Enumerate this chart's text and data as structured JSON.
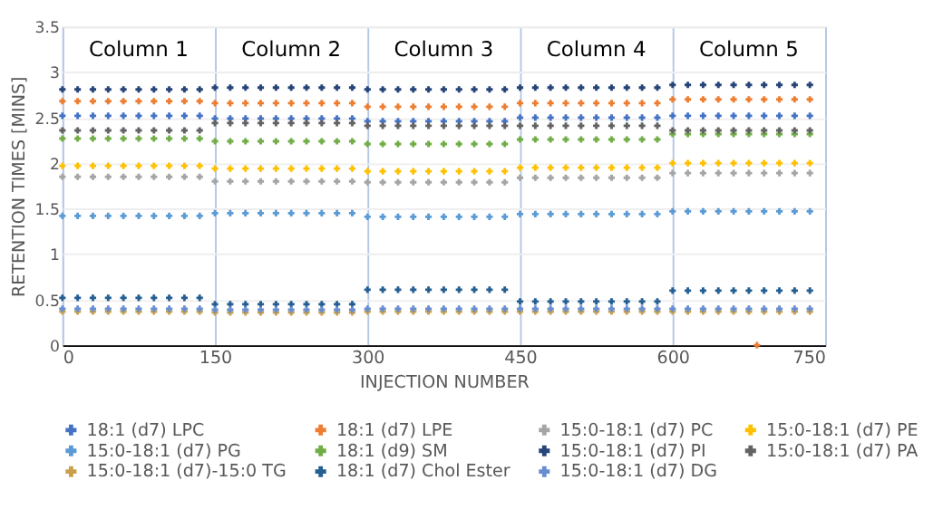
{
  "chart_data": {
    "type": "scatter",
    "xlabel": "INJECTION NUMBER",
    "ylabel": "RETENTION TIMES [MINS]",
    "xlim": [
      0,
      750
    ],
    "xticks": [
      0,
      150,
      300,
      450,
      600,
      750
    ],
    "ylim": [
      0,
      3.5
    ],
    "yticks": [
      0,
      0.5,
      1,
      1.5,
      2,
      2.5,
      3,
      3.5
    ],
    "grid": true,
    "legend": "bottom",
    "marker": "cross",
    "annotations": [
      "Column 1",
      "Column 2",
      "Column 3",
      "Column 4",
      "Column 5"
    ],
    "x": [
      0,
      15,
      30,
      45,
      60,
      75,
      90,
      105,
      120,
      135,
      150,
      165,
      180,
      195,
      210,
      225,
      240,
      255,
      270,
      285,
      300,
      315,
      330,
      345,
      360,
      375,
      390,
      405,
      420,
      435,
      450,
      465,
      480,
      495,
      510,
      525,
      540,
      555,
      570,
      585,
      600,
      615,
      630,
      645,
      660,
      675,
      690,
      705,
      720,
      735
    ],
    "series": [
      {
        "name": "18:1 (d7) LPC",
        "color": "#4472c4",
        "values": [
          2.52,
          2.52,
          2.52,
          2.52,
          2.52,
          2.52,
          2.52,
          2.52,
          2.52,
          2.52,
          2.49,
          2.49,
          2.49,
          2.49,
          2.49,
          2.49,
          2.49,
          2.49,
          2.49,
          2.49,
          2.46,
          2.46,
          2.46,
          2.46,
          2.46,
          2.46,
          2.46,
          2.46,
          2.46,
          2.46,
          2.5,
          2.5,
          2.5,
          2.5,
          2.5,
          2.5,
          2.5,
          2.5,
          2.5,
          2.5,
          2.52,
          2.52,
          2.52,
          2.52,
          2.52,
          2.52,
          2.52,
          2.52,
          2.52,
          2.52
        ]
      },
      {
        "name": "18:1 (d7) LPE",
        "color": "#ed7d31",
        "x": [
          0,
          15,
          30,
          45,
          60,
          75,
          90,
          105,
          120,
          135,
          150,
          165,
          180,
          195,
          210,
          225,
          240,
          255,
          270,
          285,
          300,
          315,
          330,
          345,
          360,
          375,
          390,
          405,
          420,
          435,
          450,
          465,
          480,
          495,
          510,
          525,
          540,
          555,
          570,
          585,
          600,
          615,
          630,
          645,
          660,
          675,
          683,
          690,
          705,
          720,
          735
        ],
        "values": [
          2.68,
          2.68,
          2.68,
          2.68,
          2.68,
          2.68,
          2.68,
          2.68,
          2.68,
          2.68,
          2.66,
          2.66,
          2.66,
          2.66,
          2.66,
          2.66,
          2.66,
          2.66,
          2.66,
          2.66,
          2.62,
          2.62,
          2.62,
          2.62,
          2.62,
          2.62,
          2.62,
          2.62,
          2.62,
          2.62,
          2.66,
          2.66,
          2.66,
          2.66,
          2.66,
          2.66,
          2.66,
          2.66,
          2.66,
          2.66,
          2.7,
          2.7,
          2.7,
          2.7,
          2.7,
          2.7,
          0,
          2.7,
          2.7,
          2.7,
          2.7
        ]
      },
      {
        "name": "15:0-18:1 (d7) PC",
        "color": "#a5a5a5",
        "values": [
          1.85,
          1.85,
          1.85,
          1.85,
          1.85,
          1.85,
          1.85,
          1.85,
          1.85,
          1.85,
          1.8,
          1.8,
          1.8,
          1.8,
          1.8,
          1.8,
          1.8,
          1.8,
          1.8,
          1.8,
          1.79,
          1.79,
          1.79,
          1.79,
          1.79,
          1.79,
          1.79,
          1.79,
          1.79,
          1.79,
          1.84,
          1.84,
          1.84,
          1.84,
          1.84,
          1.84,
          1.84,
          1.84,
          1.84,
          1.84,
          1.89,
          1.89,
          1.89,
          1.89,
          1.89,
          1.89,
          1.89,
          1.89,
          1.89,
          1.89
        ]
      },
      {
        "name": "15:0-18:1 (d7) PE",
        "color": "#ffc000",
        "values": [
          1.97,
          1.97,
          1.97,
          1.97,
          1.97,
          1.97,
          1.97,
          1.97,
          1.97,
          1.97,
          1.94,
          1.94,
          1.94,
          1.94,
          1.94,
          1.94,
          1.94,
          1.94,
          1.94,
          1.94,
          1.91,
          1.91,
          1.91,
          1.91,
          1.91,
          1.91,
          1.91,
          1.91,
          1.91,
          1.91,
          1.95,
          1.95,
          1.95,
          1.95,
          1.95,
          1.95,
          1.95,
          1.95,
          1.95,
          1.95,
          2.0,
          2.0,
          2.0,
          2.0,
          2.0,
          2.0,
          2.0,
          2.0,
          2.0,
          2.0
        ]
      },
      {
        "name": "15:0-18:1 (d7) PG",
        "color": "#5b9bd5",
        "values": [
          1.42,
          1.42,
          1.42,
          1.42,
          1.42,
          1.42,
          1.42,
          1.42,
          1.42,
          1.42,
          1.45,
          1.45,
          1.45,
          1.45,
          1.45,
          1.45,
          1.45,
          1.45,
          1.45,
          1.45,
          1.41,
          1.41,
          1.41,
          1.41,
          1.41,
          1.41,
          1.41,
          1.41,
          1.41,
          1.41,
          1.44,
          1.44,
          1.44,
          1.44,
          1.44,
          1.44,
          1.44,
          1.44,
          1.44,
          1.44,
          1.47,
          1.47,
          1.47,
          1.47,
          1.47,
          1.47,
          1.47,
          1.47,
          1.47,
          1.47
        ]
      },
      {
        "name": "18:1 (d9) SM",
        "color": "#70ad47",
        "values": [
          2.27,
          2.27,
          2.27,
          2.27,
          2.27,
          2.27,
          2.27,
          2.27,
          2.27,
          2.27,
          2.24,
          2.24,
          2.24,
          2.24,
          2.24,
          2.24,
          2.24,
          2.24,
          2.24,
          2.24,
          2.21,
          2.21,
          2.21,
          2.21,
          2.21,
          2.21,
          2.21,
          2.21,
          2.21,
          2.21,
          2.26,
          2.26,
          2.26,
          2.26,
          2.26,
          2.26,
          2.26,
          2.26,
          2.26,
          2.26,
          2.32,
          2.32,
          2.32,
          2.32,
          2.32,
          2.32,
          2.32,
          2.32,
          2.32,
          2.32
        ]
      },
      {
        "name": "15:0-18:1 (d7) PI",
        "color": "#264478",
        "values": [
          2.81,
          2.81,
          2.81,
          2.81,
          2.81,
          2.81,
          2.81,
          2.81,
          2.81,
          2.81,
          2.83,
          2.83,
          2.83,
          2.83,
          2.83,
          2.83,
          2.83,
          2.83,
          2.83,
          2.83,
          2.81,
          2.81,
          2.81,
          2.81,
          2.81,
          2.81,
          2.81,
          2.81,
          2.81,
          2.81,
          2.83,
          2.83,
          2.83,
          2.83,
          2.83,
          2.83,
          2.83,
          2.83,
          2.83,
          2.83,
          2.86,
          2.86,
          2.86,
          2.86,
          2.86,
          2.86,
          2.86,
          2.86,
          2.86,
          2.86
        ]
      },
      {
        "name": "15:0-18:1 (d7) PA",
        "color": "#636363",
        "values": [
          2.36,
          2.36,
          2.36,
          2.36,
          2.36,
          2.36,
          2.36,
          2.36,
          2.36,
          2.36,
          2.44,
          2.44,
          2.44,
          2.44,
          2.44,
          2.44,
          2.44,
          2.44,
          2.44,
          2.44,
          2.41,
          2.41,
          2.41,
          2.41,
          2.41,
          2.41,
          2.41,
          2.41,
          2.41,
          2.41,
          2.41,
          2.41,
          2.41,
          2.41,
          2.41,
          2.41,
          2.41,
          2.41,
          2.41,
          2.41,
          2.36,
          2.36,
          2.36,
          2.36,
          2.36,
          2.36,
          2.36,
          2.36,
          2.36,
          2.36
        ]
      },
      {
        "name": "15:0-18:1 (d7)-15:0 TG",
        "color": "#c9a04a",
        "values": [
          0.37,
          0.37,
          0.37,
          0.37,
          0.37,
          0.37,
          0.37,
          0.37,
          0.37,
          0.37,
          0.36,
          0.36,
          0.36,
          0.36,
          0.36,
          0.36,
          0.36,
          0.36,
          0.36,
          0.36,
          0.37,
          0.37,
          0.37,
          0.37,
          0.37,
          0.37,
          0.37,
          0.37,
          0.37,
          0.37,
          0.37,
          0.37,
          0.37,
          0.37,
          0.37,
          0.37,
          0.37,
          0.37,
          0.37,
          0.37,
          0.37,
          0.37,
          0.37,
          0.37,
          0.37,
          0.37,
          0.37,
          0.37,
          0.37,
          0.37
        ]
      },
      {
        "name": "18:1 (d7) Chol Ester",
        "color": "#255e91",
        "values": [
          0.52,
          0.52,
          0.52,
          0.52,
          0.52,
          0.52,
          0.52,
          0.52,
          0.52,
          0.52,
          0.45,
          0.45,
          0.45,
          0.45,
          0.45,
          0.45,
          0.45,
          0.45,
          0.45,
          0.45,
          0.61,
          0.61,
          0.61,
          0.61,
          0.61,
          0.61,
          0.61,
          0.61,
          0.61,
          0.61,
          0.48,
          0.48,
          0.48,
          0.48,
          0.48,
          0.48,
          0.48,
          0.48,
          0.48,
          0.48,
          0.6,
          0.6,
          0.6,
          0.6,
          0.6,
          0.6,
          0.6,
          0.6,
          0.6,
          0.6
        ]
      },
      {
        "name": "15:0-18:1 (d7) DG",
        "color": "#698ed0",
        "values": [
          0.4,
          0.4,
          0.4,
          0.4,
          0.4,
          0.4,
          0.4,
          0.4,
          0.4,
          0.4,
          0.39,
          0.39,
          0.39,
          0.39,
          0.39,
          0.39,
          0.39,
          0.39,
          0.39,
          0.39,
          0.4,
          0.4,
          0.4,
          0.4,
          0.4,
          0.4,
          0.4,
          0.4,
          0.4,
          0.4,
          0.4,
          0.4,
          0.4,
          0.4,
          0.4,
          0.4,
          0.4,
          0.4,
          0.4,
          0.4,
          0.4,
          0.4,
          0.4,
          0.4,
          0.4,
          0.4,
          0.4,
          0.4,
          0.4,
          0.4
        ]
      }
    ]
  }
}
